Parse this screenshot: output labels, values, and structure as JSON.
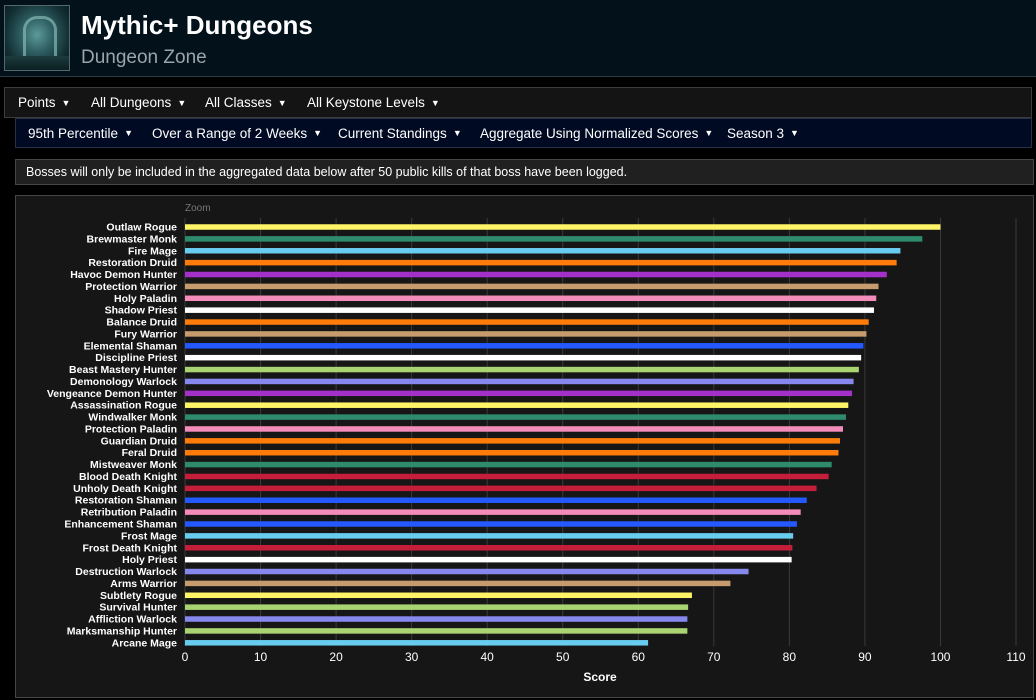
{
  "header": {
    "title": "Mythic+ Dungeons",
    "subtitle": "Dungeon Zone"
  },
  "filters_row1": [
    {
      "label": "Points"
    },
    {
      "label": "All Dungeons"
    },
    {
      "label": "All Classes"
    },
    {
      "label": "All Keystone Levels"
    }
  ],
  "filters_row2": [
    {
      "label": "95th Percentile"
    },
    {
      "label": "Over a Range of 2 Weeks"
    },
    {
      "label": "Current Standings"
    },
    {
      "label": "Aggregate Using Normalized Scores"
    },
    {
      "label": "Season 3"
    }
  ],
  "notice": "Bosses will only be included in the aggregated data below after 50 public kills of that boss have been logged.",
  "chart_zoom_label": "Zoom",
  "colors": {
    "Rogue": "#fff468",
    "Monk": "#2e8b6e",
    "Mage": "#68ccef",
    "Druid": "#ff7c0a",
    "Demon Hunter": "#a330c9",
    "Warrior": "#c69b6d",
    "Paladin": "#f48cba",
    "Priest": "#ffffff",
    "Shaman": "#2359ff",
    "Hunter": "#aad372",
    "Warlock": "#8788ee",
    "Death Knight": "#c41e3a"
  },
  "chart_data": {
    "type": "bar",
    "orientation": "horizontal",
    "xlabel": "Score",
    "xlim": [
      0,
      110
    ],
    "xticks": [
      0,
      10,
      20,
      30,
      40,
      50,
      60,
      70,
      80,
      90,
      100,
      110
    ],
    "grid": true,
    "categories": [
      "Outlaw Rogue",
      "Brewmaster Monk",
      "Fire Mage",
      "Restoration Druid",
      "Havoc Demon Hunter",
      "Protection Warrior",
      "Holy Paladin",
      "Shadow Priest",
      "Balance Druid",
      "Fury Warrior",
      "Elemental Shaman",
      "Discipline Priest",
      "Beast Mastery Hunter",
      "Demonology Warlock",
      "Vengeance Demon Hunter",
      "Assassination Rogue",
      "Windwalker Monk",
      "Protection Paladin",
      "Guardian Druid",
      "Feral Druid",
      "Mistweaver Monk",
      "Blood Death Knight",
      "Unholy Death Knight",
      "Restoration Shaman",
      "Retribution Paladin",
      "Enhancement Shaman",
      "Frost Mage",
      "Frost Death Knight",
      "Holy Priest",
      "Destruction Warlock",
      "Arms Warrior",
      "Subtlety Rogue",
      "Survival Hunter",
      "Affliction Warlock",
      "Marksmanship Hunter",
      "Arcane Mage"
    ],
    "classes": [
      "Rogue",
      "Monk",
      "Mage",
      "Druid",
      "Demon Hunter",
      "Warrior",
      "Paladin",
      "Priest",
      "Druid",
      "Warrior",
      "Shaman",
      "Priest",
      "Hunter",
      "Warlock",
      "Demon Hunter",
      "Rogue",
      "Monk",
      "Paladin",
      "Druid",
      "Druid",
      "Monk",
      "Death Knight",
      "Death Knight",
      "Shaman",
      "Paladin",
      "Shaman",
      "Mage",
      "Death Knight",
      "Priest",
      "Warlock",
      "Warrior",
      "Rogue",
      "Hunter",
      "Warlock",
      "Hunter",
      "Mage"
    ],
    "values": [
      100.0,
      97.6,
      94.7,
      94.2,
      92.9,
      91.8,
      91.5,
      91.2,
      90.5,
      90.2,
      89.8,
      89.5,
      89.2,
      88.5,
      88.3,
      87.8,
      87.5,
      87.1,
      86.7,
      86.5,
      85.6,
      85.2,
      83.6,
      82.3,
      81.5,
      81.0,
      80.5,
      80.4,
      80.3,
      74.6,
      72.2,
      67.1,
      66.6,
      66.5,
      66.5,
      61.3
    ]
  }
}
